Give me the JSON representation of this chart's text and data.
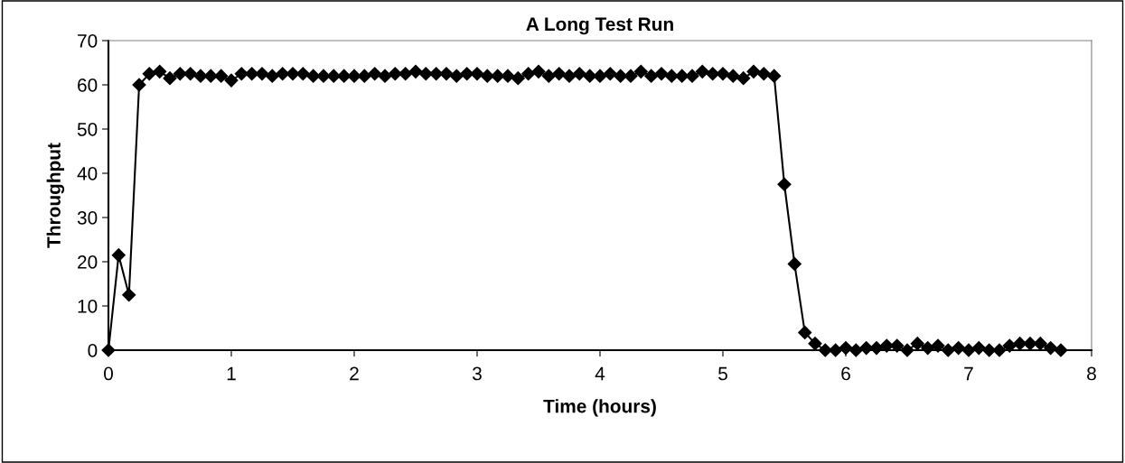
{
  "chart_data": {
    "type": "line",
    "title": "A Long Test Run",
    "xlabel": "Time (hours)",
    "ylabel": "Throughput",
    "xlim": [
      0,
      8
    ],
    "xticks": [
      0,
      1,
      2,
      3,
      4,
      5,
      6,
      7,
      8
    ],
    "ylim": [
      0,
      70
    ],
    "yticks": [
      0,
      10,
      20,
      30,
      40,
      50,
      60,
      70
    ],
    "grid": false,
    "marker": "diamond",
    "line_style": "solid",
    "x": [
      0,
      0.083,
      0.167,
      0.25,
      0.333,
      0.417,
      0.5,
      0.583,
      0.667,
      0.75,
      0.833,
      0.917,
      1,
      1.083,
      1.167,
      1.25,
      1.333,
      1.417,
      1.5,
      1.583,
      1.667,
      1.75,
      1.833,
      1.917,
      2,
      2.083,
      2.167,
      2.25,
      2.333,
      2.417,
      2.5,
      2.583,
      2.667,
      2.75,
      2.833,
      2.917,
      3,
      3.083,
      3.167,
      3.25,
      3.333,
      3.417,
      3.5,
      3.583,
      3.667,
      3.75,
      3.833,
      3.917,
      4,
      4.083,
      4.167,
      4.25,
      4.333,
      4.417,
      4.5,
      4.583,
      4.667,
      4.75,
      4.833,
      4.917,
      5,
      5.083,
      5.167,
      5.25,
      5.333,
      5.417,
      5.5,
      5.583,
      5.667,
      5.75,
      5.833,
      5.917,
      6,
      6.083,
      6.167,
      6.25,
      6.333,
      6.417,
      6.5,
      6.583,
      6.667,
      6.75,
      6.833,
      6.917,
      7,
      7.083,
      7.167,
      7.25,
      7.333,
      7.417,
      7.5,
      7.583,
      7.667,
      7.75
    ],
    "series": [
      {
        "color": "#000000",
        "values": [
          0,
          21.5,
          12.5,
          60,
          62.5,
          63,
          61.5,
          62.5,
          62.5,
          62,
          62,
          62,
          61,
          62.5,
          62.5,
          62.5,
          62,
          62.5,
          62.5,
          62.5,
          62,
          62,
          62,
          62,
          62,
          62,
          62.5,
          62,
          62.5,
          62.5,
          63,
          62.5,
          62.5,
          62.5,
          62,
          62.5,
          62.5,
          62,
          62,
          62,
          61.5,
          62.5,
          63,
          62,
          62.5,
          62,
          62.5,
          62,
          62,
          62.5,
          62,
          62,
          63,
          62,
          62.5,
          62,
          62,
          62,
          63,
          62.5,
          62.5,
          62,
          61.5,
          63,
          62.5,
          62,
          37.5,
          19.5,
          4,
          1.5,
          0,
          0,
          0.5,
          0,
          0.5,
          0.5,
          1,
          1,
          0,
          1.5,
          0.5,
          1,
          0,
          0.5,
          0,
          0.5,
          0,
          0,
          1,
          1.5,
          1.5,
          1.5,
          0.5,
          0
        ]
      }
    ]
  }
}
